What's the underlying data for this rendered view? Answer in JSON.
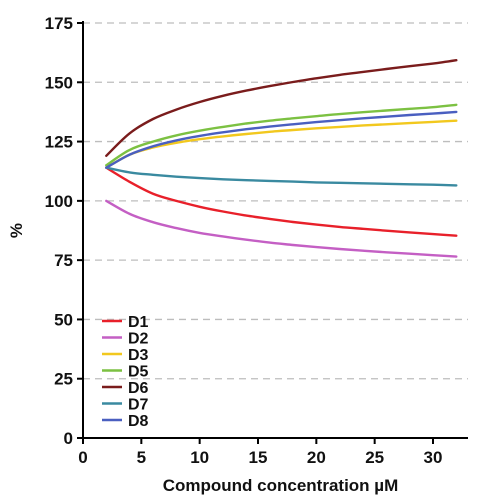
{
  "chart_data": {
    "type": "line",
    "title": "",
    "xlabel": "Compound concentration µM",
    "ylabel": "%",
    "xlim": [
      0,
      33
    ],
    "ylim": [
      0,
      175
    ],
    "x_ticks": [
      0,
      5,
      10,
      15,
      20,
      25,
      30
    ],
    "y_ticks": [
      0,
      25,
      50,
      75,
      100,
      125,
      150,
      175
    ],
    "grid": "horizontal dashed",
    "legend_position": "bottom-left",
    "x": [
      2,
      4,
      6,
      8,
      10,
      12,
      14,
      16,
      18,
      20,
      22,
      24,
      26,
      28,
      30,
      32
    ],
    "series": [
      {
        "name": "D1",
        "color": "#e8202a",
        "values": [
          114,
          108,
          103,
          100,
          97.5,
          95.5,
          93.8,
          92.4,
          91.1,
          90,
          89,
          88.2,
          87.4,
          86.7,
          86,
          85.3
        ]
      },
      {
        "name": "D2",
        "color": "#c45fc4",
        "values": [
          100,
          94.5,
          91,
          88.5,
          86.5,
          85,
          83.6,
          82.4,
          81.4,
          80.5,
          79.7,
          79,
          78.3,
          77.7,
          77.1,
          76.5
        ]
      },
      {
        "name": "D3",
        "color": "#f2c81e",
        "values": [
          114,
          119.5,
          122.5,
          124.5,
          126,
          127.2,
          128.2,
          129.1,
          129.9,
          130.6,
          131.2,
          131.8,
          132.3,
          132.8,
          133.3,
          133.8
        ]
      },
      {
        "name": "D5",
        "color": "#7cc142",
        "values": [
          115,
          121.5,
          125,
          127.6,
          129.6,
          131.2,
          132.6,
          133.8,
          134.8,
          135.7,
          136.6,
          137.4,
          138.1,
          138.8,
          139.5,
          140.5
        ]
      },
      {
        "name": "D6",
        "color": "#7a1c1c",
        "values": [
          119,
          128.5,
          134.5,
          138.5,
          141.7,
          144.3,
          146.5,
          148.4,
          150.1,
          151.7,
          153.1,
          154.4,
          155.6,
          156.8,
          157.9,
          159.3
        ]
      },
      {
        "name": "D7",
        "color": "#3a8aa0",
        "values": [
          114,
          112,
          111,
          110.2,
          109.6,
          109.1,
          108.7,
          108.4,
          108.1,
          107.8,
          107.6,
          107.4,
          107.2,
          107,
          106.8,
          106.5
        ]
      },
      {
        "name": "D8",
        "color": "#4a5fc0",
        "values": [
          114,
          119.5,
          123,
          125.5,
          127.4,
          128.9,
          130.2,
          131.3,
          132.3,
          133.2,
          134,
          134.8,
          135.5,
          136.2,
          136.8,
          137.5
        ]
      }
    ]
  }
}
